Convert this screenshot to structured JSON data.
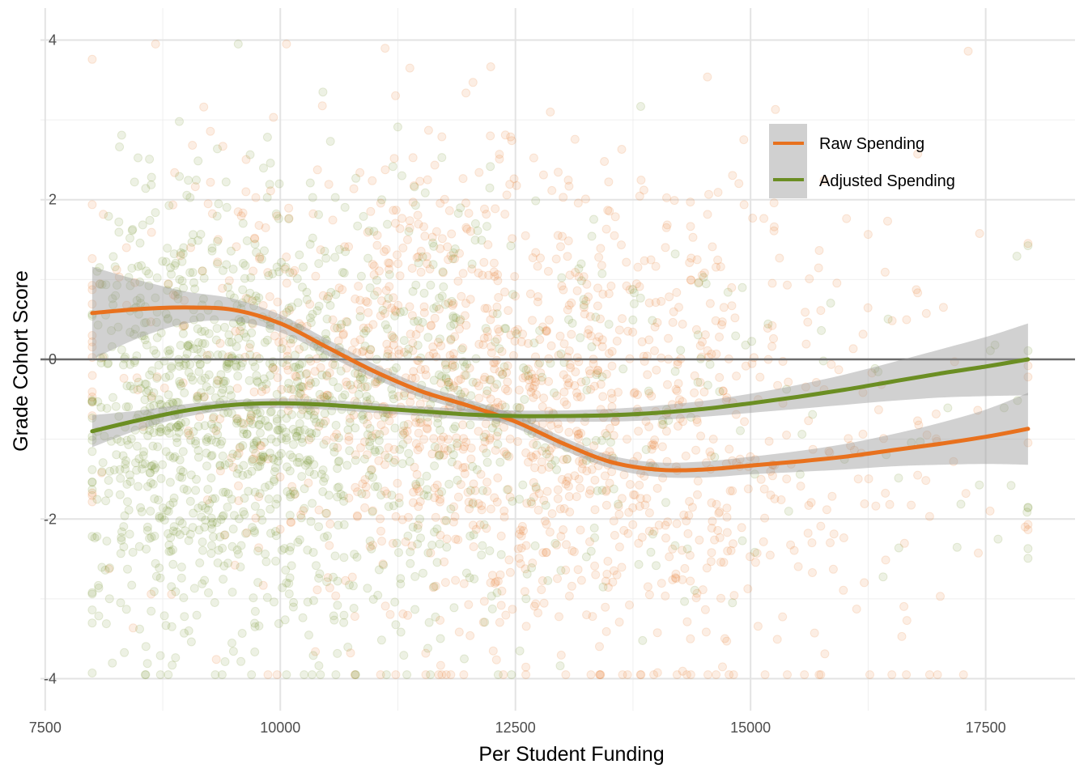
{
  "chart_data": {
    "type": "scatter",
    "title": "",
    "xlabel": "Per Student Funding",
    "ylabel": "Grade Cohort Score",
    "xlim": [
      7450,
      18450
    ],
    "ylim": [
      -4.4,
      4.4
    ],
    "x_ticks": [
      7500,
      10000,
      12500,
      15000,
      17500
    ],
    "y_ticks": [
      -4,
      -2,
      0,
      2,
      4
    ],
    "grid": true,
    "reference_line_y": 0,
    "legend_position": "top-right",
    "point_opacity": 0.12,
    "series": [
      {
        "name": "Raw Spending",
        "color": "#E8711E",
        "scatter_center": {
          "x": 12600,
          "y": -0.6
        },
        "smooth": {
          "x": [
            8000,
            8500,
            9000,
            9500,
            10000,
            10500,
            11000,
            11500,
            12000,
            12500,
            13000,
            13500,
            14000,
            14500,
            15000,
            15500,
            16000,
            16500,
            17000,
            17500,
            17950
          ],
          "y": [
            0.58,
            0.63,
            0.65,
            0.62,
            0.45,
            0.15,
            -0.15,
            -0.4,
            -0.58,
            -0.78,
            -1.05,
            -1.28,
            -1.38,
            -1.38,
            -1.33,
            -1.28,
            -1.22,
            -1.14,
            -1.06,
            -0.97,
            -0.87
          ],
          "se": [
            0.58,
            0.36,
            0.2,
            0.14,
            0.11,
            0.1,
            0.09,
            0.08,
            0.08,
            0.08,
            0.08,
            0.08,
            0.09,
            0.1,
            0.11,
            0.13,
            0.16,
            0.2,
            0.26,
            0.34,
            0.45
          ]
        }
      },
      {
        "name": "Adjusted Spending",
        "color": "#6B8E23",
        "scatter_center": {
          "x": 10200,
          "y": -0.2
        },
        "smooth": {
          "x": [
            8000,
            8500,
            9000,
            9500,
            10000,
            10500,
            11000,
            11500,
            12000,
            12500,
            13000,
            13500,
            14000,
            14500,
            15000,
            15500,
            16000,
            16500,
            17000,
            17500,
            17950
          ],
          "y": [
            -0.9,
            -0.76,
            -0.64,
            -0.57,
            -0.55,
            -0.57,
            -0.61,
            -0.65,
            -0.69,
            -0.71,
            -0.71,
            -0.7,
            -0.67,
            -0.62,
            -0.55,
            -0.47,
            -0.38,
            -0.28,
            -0.18,
            -0.09,
            0.0
          ],
          "se": [
            0.2,
            0.12,
            0.08,
            0.06,
            0.06,
            0.06,
            0.06,
            0.06,
            0.07,
            0.07,
            0.07,
            0.08,
            0.09,
            0.1,
            0.12,
            0.15,
            0.19,
            0.24,
            0.3,
            0.37,
            0.45
          ]
        }
      }
    ]
  }
}
